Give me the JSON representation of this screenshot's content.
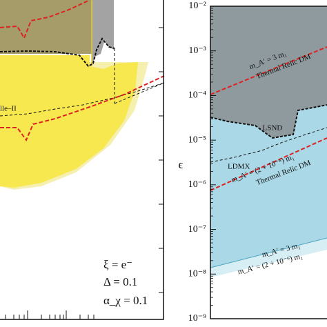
{
  "chart_data": [
    {
      "type": "area",
      "annotations": [
        "lle–II",
        "ξ = e⁻",
        "Δ = 0.1",
        "α_χ = 0.1"
      ]
    },
    {
      "type": "area",
      "ylabel": "ϵ",
      "ylog": true,
      "ylim": [
        1e-09,
        0.01
      ],
      "yticks": [
        {
          "value": 1e-09,
          "label": "10⁻⁹"
        },
        {
          "value": 1e-08,
          "label": "10⁻⁸"
        },
        {
          "value": 1e-07,
          "label": "10⁻⁷"
        },
        {
          "value": 1e-06,
          "label": "10⁻⁶"
        },
        {
          "value": 1e-05,
          "label": "10⁻⁵"
        },
        {
          "value": 0.0001,
          "label": "10⁻⁴"
        },
        {
          "value": 0.001,
          "label": "10⁻³"
        },
        {
          "value": 0.01,
          "label": "10⁻²"
        }
      ],
      "annotations": [
        "LSND",
        "LDMX",
        "m_A′ = 3 m₁",
        "Thermal Relic DM",
        "m_A′ = (2 + 10⁻⁶) m₁",
        "Thermal Relic DM",
        "m_A′ = 3 m₁",
        "m_A′ = (2 + 10⁻⁶) m₁"
      ]
    }
  ]
}
